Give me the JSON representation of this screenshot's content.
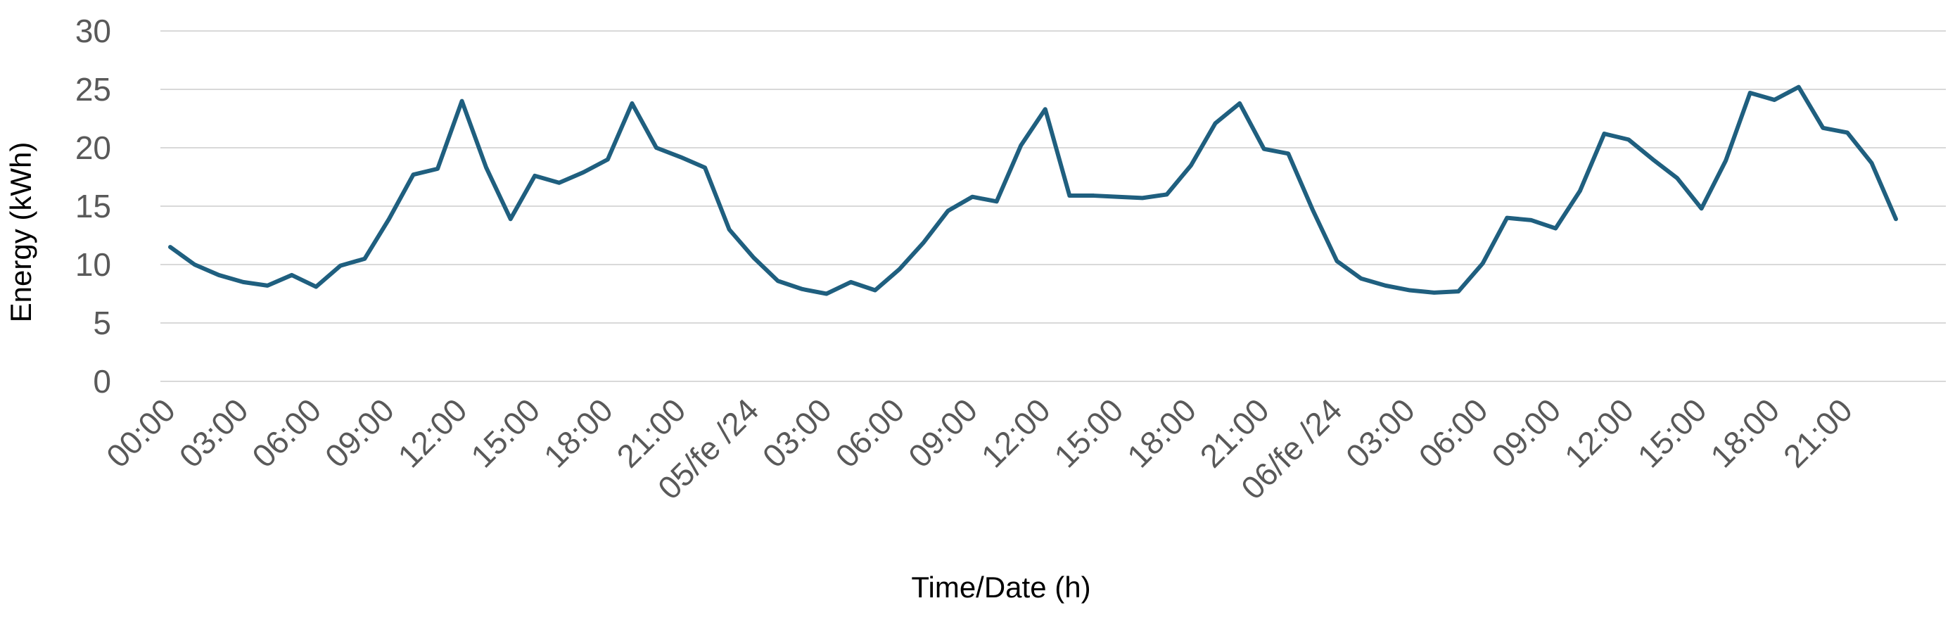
{
  "chart_data": {
    "type": "line",
    "title": "",
    "xlabel": "Time/Date (h)",
    "ylabel": "Energy (kWh)",
    "ylim": [
      0,
      30
    ],
    "yticks": [
      0,
      5,
      10,
      15,
      20,
      25,
      30
    ],
    "grid": "horizontal",
    "legend": "none",
    "colors": {
      "line": "#1f5f7f",
      "grid": "#d9d9d9",
      "tick_text": "#595959",
      "axis_title": "#000000"
    },
    "xtick_labels": [
      "00:00",
      "03:00",
      "06:00",
      "09:00",
      "12:00",
      "15:00",
      "18:00",
      "21:00",
      "05/fe /24",
      "03:00",
      "06:00",
      "09:00",
      "12:00",
      "15:00",
      "18:00",
      "21:00",
      "06/fe /24",
      "03:00",
      "06:00",
      "09:00",
      "12:00",
      "15:00",
      "18:00",
      "21:00"
    ],
    "series": [
      {
        "values": [
          11.5,
          10.0,
          9.1,
          8.5,
          8.2,
          9.1,
          8.1,
          9.9,
          10.5,
          13.9,
          17.7,
          18.2,
          24.0,
          18.3,
          13.9,
          17.6,
          17.0,
          17.9,
          19.0,
          23.8,
          20.0,
          19.2,
          18.3,
          13.0,
          10.6,
          8.6,
          7.9,
          7.5,
          8.5,
          7.8,
          9.6,
          11.9,
          14.6,
          15.8,
          15.4,
          20.2,
          23.3,
          15.9,
          15.9,
          15.8,
          15.7,
          16.0,
          18.5,
          22.1,
          23.8,
          19.9,
          19.5,
          14.7,
          10.3,
          8.8,
          8.2,
          7.8,
          7.6,
          7.7,
          10.1,
          14.0,
          13.8,
          13.1,
          16.3,
          21.2,
          20.7,
          19.0,
          17.4,
          14.8,
          18.9,
          24.7,
          24.1,
          25.2,
          21.7,
          21.3,
          18.7,
          13.9
        ]
      }
    ]
  }
}
